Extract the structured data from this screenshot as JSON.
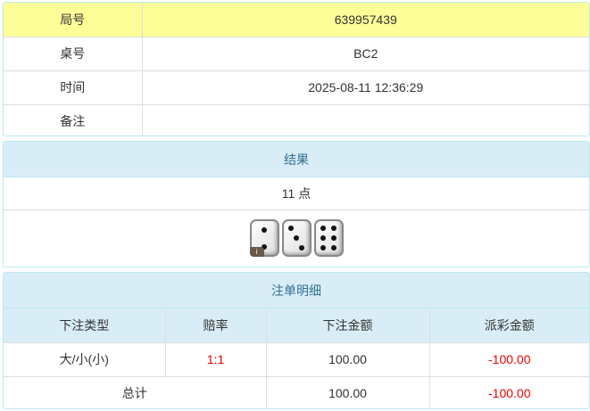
{
  "info": {
    "rows": [
      {
        "label": "局号",
        "value": "639957439"
      },
      {
        "label": "桌号",
        "value": "BC2"
      },
      {
        "label": "时间",
        "value": "2025-08-11 12:36:29"
      },
      {
        "label": "备注",
        "value": ""
      }
    ],
    "highlight_color": "#ffff99"
  },
  "result": {
    "title": "结果",
    "points": "11 点",
    "dice": [
      2,
      3,
      6
    ],
    "info_icon": "i"
  },
  "bets": {
    "title": "注单明细",
    "columns": [
      "下注类型",
      "赔率",
      "下注金额",
      "派彩金额"
    ],
    "rows": [
      {
        "type": "大/小(小)",
        "odds": "1:1",
        "amount": "100.00",
        "payout": "-100.00"
      }
    ],
    "total": {
      "label": "总计",
      "amount": "100.00",
      "payout": "-100.00"
    },
    "negative_color": "#ee0000"
  }
}
